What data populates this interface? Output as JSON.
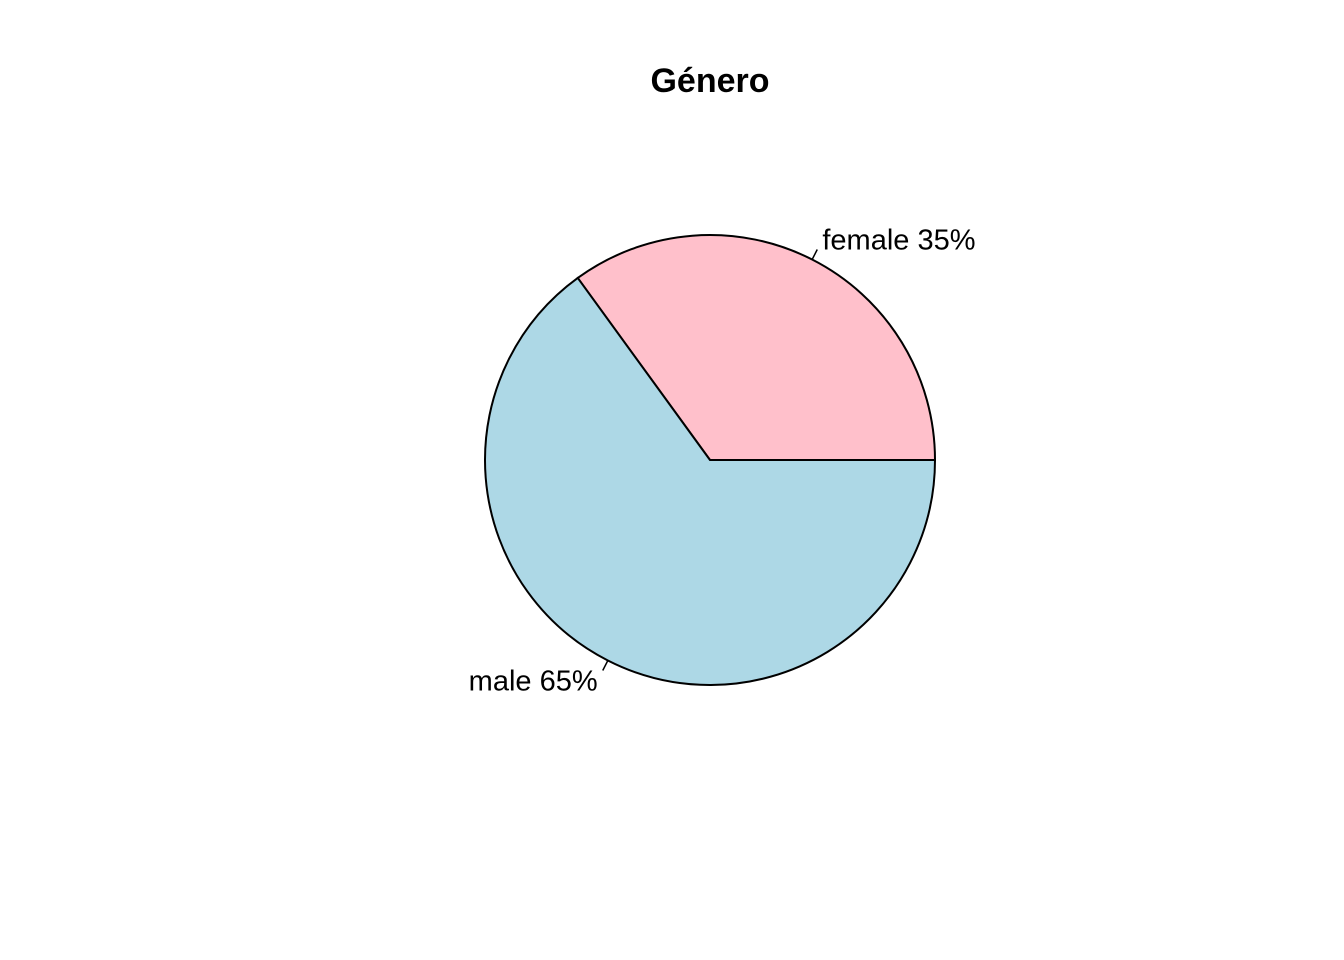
{
  "chart_data": {
    "type": "pie",
    "title": "Género",
    "direction": "counterclockwise",
    "start": "3 o'clock",
    "slices": [
      {
        "category": "female",
        "percent": 35,
        "label": "female 35%",
        "color": "#FFC0CB"
      },
      {
        "category": "male",
        "percent": 65,
        "label": "male 65%",
        "color": "#ADD8E6"
      }
    ]
  }
}
